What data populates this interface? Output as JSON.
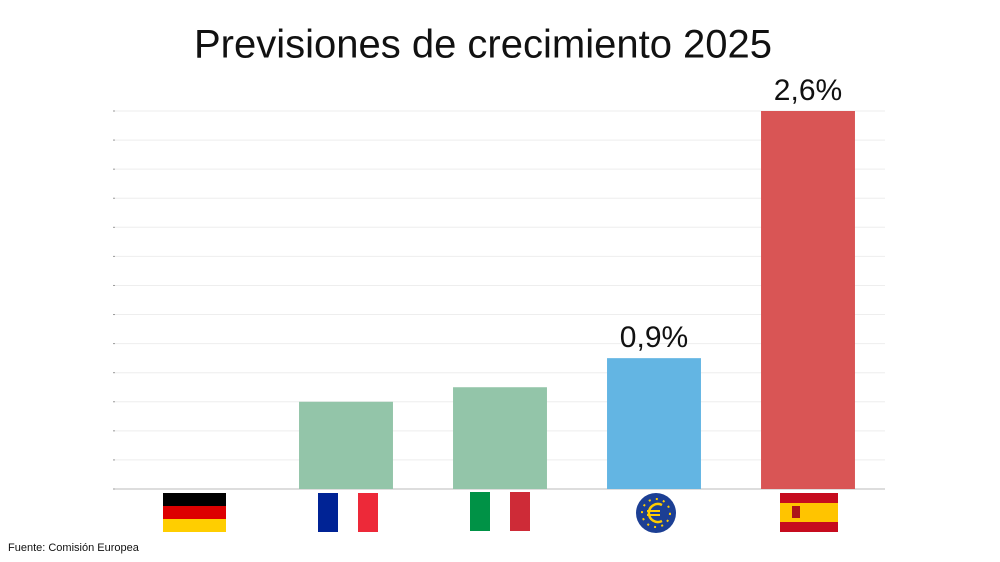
{
  "chart_data": {
    "type": "bar",
    "title": "Previsiones de crecimiento 2025",
    "categories": [
      null,
      null,
      null,
      null,
      null
    ],
    "values": [
      0,
      0.6,
      0.7,
      0.9,
      2.6
    ],
    "value_labels": [
      null,
      null,
      null,
      "0,9%",
      "2,6%"
    ],
    "colors": [
      "#93c5a9",
      "#93c5a9",
      "#93c5a9",
      "#63b5e3",
      "#d95555"
    ],
    "ylim": [
      0,
      2.6
    ],
    "yticks": [
      0,
      0.2,
      0.4,
      0.6,
      0.8,
      1,
      1.2,
      1.4,
      1.6,
      1.8,
      2,
      2.2,
      2.4,
      2.6
    ],
    "grid": true,
    "source": "Fuente: Comisión Europea"
  }
}
